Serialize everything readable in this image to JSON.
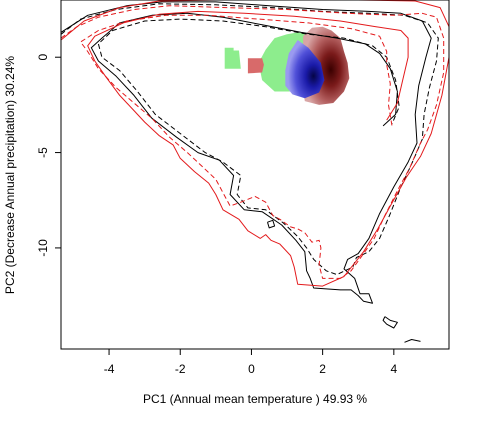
{
  "chart_data": {
    "type": "contour",
    "title": "",
    "xlabel": "PC1 (Annual mean temperature ) 49.93 %",
    "ylabel": "PC2 (Decrease Annual precipitation) 30.24%",
    "xlim": [
      -5.35,
      5.55
    ],
    "ylim": [
      -15.3,
      3.0
    ],
    "x_ticks": [
      -4,
      -2,
      0,
      2,
      4
    ],
    "y_ticks": [
      0,
      -5,
      -10
    ],
    "x_tick_labels": [
      "-4",
      "-2",
      "0",
      "2",
      "4"
    ],
    "y_tick_labels": [
      "0",
      "-5",
      "-10"
    ],
    "grid": false,
    "legend": "none",
    "colors": {
      "black_contour": "#000000",
      "red_contour": "#e31a1c",
      "green_fill": "#88ee88",
      "blue_core": "#1a1aa8",
      "red_core": "#3a0000"
    },
    "series": [
      {
        "style": "black-solid",
        "points": [
          [
            -5.35,
            1.3
          ],
          [
            -4.6,
            2.2
          ],
          [
            -3.5,
            2.7
          ],
          [
            -2.5,
            2.9
          ],
          [
            -1.0,
            2.9
          ],
          [
            0.5,
            2.7
          ],
          [
            2.0,
            2.5
          ],
          [
            3.3,
            2.4
          ],
          [
            4.2,
            2.3
          ],
          [
            4.8,
            1.9
          ],
          [
            5.05,
            1.0
          ],
          [
            4.9,
            0.0
          ],
          [
            4.7,
            -1.5
          ],
          [
            4.6,
            -3.0
          ],
          [
            4.65,
            -4.5
          ],
          [
            4.4,
            -5.5
          ],
          [
            4.0,
            -6.8
          ],
          [
            3.6,
            -8.2
          ],
          [
            3.3,
            -9.5
          ],
          [
            3.0,
            -10.3
          ],
          [
            2.7,
            -10.6
          ],
          [
            2.6,
            -11.1
          ],
          [
            2.9,
            -11.6
          ],
          [
            3.05,
            -12.4
          ],
          [
            3.3,
            -12.4
          ],
          [
            3.4,
            -12.9
          ],
          [
            3.15,
            -12.8
          ],
          [
            3.0,
            -12.5
          ],
          [
            2.8,
            -12.2
          ],
          [
            2.5,
            -12.2
          ],
          [
            1.75,
            -12.1
          ],
          [
            1.65,
            -11.6
          ],
          [
            1.55,
            -11.2
          ],
          [
            1.5,
            -10.2
          ],
          [
            1.25,
            -9.6
          ],
          [
            0.85,
            -8.8
          ],
          [
            0.3,
            -8.1
          ],
          [
            -0.2,
            -8.0
          ],
          [
            -0.6,
            -7.2
          ],
          [
            -0.5,
            -6.2
          ],
          [
            -0.9,
            -5.4
          ],
          [
            -1.5,
            -5.0
          ],
          [
            -2.1,
            -4.2
          ],
          [
            -2.8,
            -3.2
          ],
          [
            -3.3,
            -2.0
          ],
          [
            -3.8,
            -1.0
          ],
          [
            -4.3,
            -0.2
          ],
          [
            -4.5,
            0.5
          ],
          [
            -4.2,
            1.0
          ],
          [
            -3.7,
            1.8
          ],
          [
            -2.8,
            2.2
          ],
          [
            -1.8,
            2.3
          ],
          [
            -0.8,
            2.1
          ],
          [
            0.3,
            1.7
          ],
          [
            1.4,
            1.3
          ],
          [
            2.4,
            1.0
          ],
          [
            3.2,
            0.7
          ],
          [
            3.6,
            0.2
          ],
          [
            3.9,
            -0.6
          ],
          [
            4.1,
            -1.8
          ],
          [
            4.05,
            -3.0
          ],
          [
            3.7,
            -3.6
          ]
        ]
      },
      {
        "style": "black-dashed",
        "points": [
          [
            -5.35,
            1.2
          ],
          [
            -4.8,
            2.0
          ],
          [
            -3.8,
            2.5
          ],
          [
            -2.6,
            2.8
          ],
          [
            -1.0,
            2.75
          ],
          [
            0.6,
            2.6
          ],
          [
            2.0,
            2.4
          ],
          [
            3.3,
            2.3
          ],
          [
            4.3,
            2.2
          ],
          [
            4.95,
            1.8
          ],
          [
            5.25,
            1.0
          ],
          [
            5.2,
            -0.2
          ],
          [
            5.0,
            -1.6
          ],
          [
            4.85,
            -3.0
          ],
          [
            4.8,
            -4.3
          ],
          [
            4.5,
            -5.6
          ],
          [
            4.2,
            -6.8
          ],
          [
            3.9,
            -8.2
          ],
          [
            3.6,
            -9.5
          ],
          [
            3.3,
            -10.2
          ],
          [
            2.95,
            -10.5
          ],
          [
            2.85,
            -11.0
          ],
          [
            2.4,
            -11.4
          ],
          [
            2.1,
            -11.2
          ],
          [
            1.75,
            -10.6
          ],
          [
            1.55,
            -10.0
          ],
          [
            1.3,
            -9.4
          ],
          [
            0.9,
            -8.7
          ],
          [
            0.4,
            -8.0
          ],
          [
            -0.1,
            -7.9
          ],
          [
            -0.4,
            -7.2
          ],
          [
            -0.3,
            -6.2
          ],
          [
            -0.8,
            -5.5
          ],
          [
            -1.3,
            -5.0
          ],
          [
            -2.0,
            -4.0
          ],
          [
            -2.7,
            -3.0
          ],
          [
            -3.2,
            -1.8
          ],
          [
            -3.7,
            -0.7
          ],
          [
            -4.2,
            0.0
          ],
          [
            -4.3,
            0.7
          ],
          [
            -3.9,
            1.4
          ],
          [
            -3.0,
            1.9
          ],
          [
            -2.0,
            2.0
          ],
          [
            -0.8,
            1.9
          ],
          [
            0.4,
            1.6
          ],
          [
            1.6,
            1.2
          ],
          [
            2.6,
            1.0
          ],
          [
            3.4,
            0.6
          ],
          [
            3.8,
            0.0
          ],
          [
            4.05,
            -1.2
          ],
          [
            4.15,
            -2.6
          ],
          [
            3.95,
            -3.5
          ]
        ]
      },
      {
        "style": "red-solid",
        "points": [
          [
            -5.35,
            0.9
          ],
          [
            -4.7,
            1.9
          ],
          [
            -3.7,
            2.6
          ],
          [
            -2.6,
            2.95
          ],
          [
            -1.0,
            3.0
          ],
          [
            1.0,
            3.0
          ],
          [
            3.0,
            3.0
          ],
          [
            4.6,
            2.95
          ],
          [
            5.3,
            2.6
          ],
          [
            5.55,
            1.6
          ],
          [
            5.55,
            0.0
          ],
          [
            5.35,
            -2.0
          ],
          [
            5.05,
            -4.0
          ],
          [
            4.75,
            -5.2
          ],
          [
            4.35,
            -6.3
          ],
          [
            3.9,
            -7.8
          ],
          [
            3.55,
            -9.0
          ],
          [
            3.15,
            -10.2
          ],
          [
            2.6,
            -11.5
          ],
          [
            2.0,
            -12.0
          ],
          [
            1.3,
            -11.9
          ],
          [
            1.2,
            -11.0
          ],
          [
            1.1,
            -10.4
          ],
          [
            0.8,
            -9.8
          ],
          [
            0.55,
            -9.6
          ],
          [
            0.4,
            -9.3
          ],
          [
            0.25,
            -9.5
          ],
          [
            -0.1,
            -9.1
          ],
          [
            -0.35,
            -8.5
          ],
          [
            -0.8,
            -8.0
          ],
          [
            -1.0,
            -7.2
          ],
          [
            -1.2,
            -6.6
          ],
          [
            -1.6,
            -6.0
          ],
          [
            -2.0,
            -5.3
          ],
          [
            -2.2,
            -4.6
          ],
          [
            -2.6,
            -4.1
          ],
          [
            -3.0,
            -3.4
          ],
          [
            -3.3,
            -2.8
          ],
          [
            -3.7,
            -2.0
          ],
          [
            -4.1,
            -1.0
          ],
          [
            -4.4,
            -0.2
          ],
          [
            -4.6,
            0.6
          ],
          [
            -4.4,
            1.1
          ],
          [
            -3.6,
            1.8
          ],
          [
            -2.6,
            2.25
          ],
          [
            -1.5,
            2.4
          ],
          [
            -0.2,
            2.3
          ],
          [
            1.2,
            2.15
          ],
          [
            2.5,
            1.9
          ],
          [
            3.5,
            1.6
          ],
          [
            4.2,
            1.4
          ],
          [
            4.4,
            1.0
          ],
          [
            4.4,
            0.0
          ],
          [
            4.25,
            -1.2
          ],
          [
            4.1,
            -2.4
          ],
          [
            3.8,
            -3.3
          ]
        ]
      },
      {
        "style": "red-dashed",
        "points": [
          [
            -5.35,
            1.0
          ],
          [
            -4.9,
            1.6
          ],
          [
            -4.3,
            2.1
          ],
          [
            -3.3,
            2.5
          ],
          [
            -2.3,
            2.7
          ],
          [
            -0.7,
            2.6
          ],
          [
            1.0,
            2.5
          ],
          [
            2.7,
            2.3
          ],
          [
            4.0,
            2.2
          ],
          [
            4.8,
            2.3
          ],
          [
            5.2,
            2.1
          ],
          [
            5.4,
            1.0
          ],
          [
            5.4,
            -0.8
          ],
          [
            5.2,
            -2.5
          ],
          [
            4.95,
            -3.8
          ],
          [
            4.75,
            -4.5
          ],
          [
            4.45,
            -5.8
          ],
          [
            4.1,
            -7.0
          ],
          [
            3.75,
            -8.3
          ],
          [
            3.45,
            -9.5
          ],
          [
            3.15,
            -10.3
          ],
          [
            2.8,
            -11.2
          ],
          [
            2.5,
            -11.6
          ],
          [
            2.0,
            -11.6
          ],
          [
            1.9,
            -10.9
          ],
          [
            1.95,
            -10.0
          ],
          [
            1.9,
            -9.6
          ],
          [
            1.7,
            -9.7
          ],
          [
            1.5,
            -9.2
          ],
          [
            1.3,
            -9.0
          ],
          [
            1.1,
            -8.9
          ],
          [
            0.8,
            -8.5
          ],
          [
            0.6,
            -8.3
          ],
          [
            0.4,
            -7.6
          ],
          [
            0.1,
            -7.3
          ],
          [
            -0.3,
            -7.6
          ],
          [
            -0.6,
            -7.8
          ],
          [
            -1.0,
            -6.4
          ],
          [
            -1.4,
            -5.7
          ],
          [
            -1.8,
            -5.0
          ],
          [
            -2.3,
            -4.2
          ],
          [
            -2.8,
            -3.2
          ],
          [
            -3.3,
            -2.4
          ],
          [
            -3.8,
            -1.6
          ],
          [
            -4.3,
            -0.6
          ],
          [
            -4.6,
            0.3
          ],
          [
            -4.8,
            0.8
          ],
          [
            -4.3,
            1.4
          ],
          [
            -3.5,
            1.9
          ],
          [
            -2.4,
            2.2
          ],
          [
            -1.2,
            2.2
          ],
          [
            0.2,
            2.0
          ],
          [
            1.6,
            1.8
          ],
          [
            2.8,
            1.5
          ],
          [
            3.6,
            1.1
          ],
          [
            3.8,
            0.3
          ],
          [
            3.8,
            -0.4
          ],
          [
            3.9,
            -1.4
          ],
          [
            3.85,
            -2.5
          ],
          [
            3.95,
            -3.6
          ]
        ]
      },
      {
        "style": "black-solid",
        "points": [
          [
            3.75,
            -13.6
          ],
          [
            3.9,
            -13.8
          ],
          [
            4.1,
            -13.9
          ],
          [
            4.0,
            -14.2
          ],
          [
            3.8,
            -14.0
          ],
          [
            3.7,
            -13.8
          ],
          [
            3.75,
            -13.6
          ]
        ]
      },
      {
        "style": "black-solid",
        "points": [
          [
            4.3,
            -14.95
          ],
          [
            4.5,
            -14.8
          ],
          [
            4.75,
            -14.9
          ]
        ]
      },
      {
        "style": "black-solid",
        "points": [
          [
            0.45,
            -8.65
          ],
          [
            0.6,
            -8.55
          ],
          [
            0.65,
            -8.85
          ],
          [
            0.5,
            -8.95
          ],
          [
            0.45,
            -8.65
          ]
        ]
      }
    ],
    "density_regions": [
      {
        "color": "green",
        "points": [
          [
            -0.75,
            0.5
          ],
          [
            -0.5,
            0.5
          ],
          [
            -0.5,
            0.35
          ],
          [
            -0.35,
            0.35
          ],
          [
            -0.3,
            -0.6
          ],
          [
            -0.75,
            -0.6
          ],
          [
            -0.75,
            0.5
          ]
        ]
      },
      {
        "color": "green",
        "points": [
          [
            0.65,
            1.0
          ],
          [
            1.0,
            1.2
          ],
          [
            1.3,
            1.3
          ],
          [
            1.5,
            1.25
          ],
          [
            1.6,
            0.5
          ],
          [
            1.3,
            -0.3
          ],
          [
            1.0,
            -1.0
          ],
          [
            1.2,
            -1.8
          ],
          [
            0.65,
            -1.8
          ],
          [
            0.3,
            -1.2
          ],
          [
            0.2,
            -0.3
          ],
          [
            0.4,
            0.4
          ],
          [
            0.65,
            1.0
          ]
        ]
      },
      {
        "color": "red-light",
        "points": [
          [
            -0.1,
            -0.05
          ],
          [
            0.3,
            -0.05
          ],
          [
            0.35,
            -0.4
          ],
          [
            0.3,
            -0.8
          ],
          [
            -0.1,
            -0.85
          ],
          [
            -0.1,
            -0.05
          ]
        ]
      },
      {
        "color": "red",
        "points": [
          [
            1.45,
            1.1
          ],
          [
            1.7,
            1.55
          ],
          [
            2.0,
            1.6
          ],
          [
            2.25,
            1.4
          ],
          [
            2.5,
            1.0
          ],
          [
            2.6,
            0.3
          ],
          [
            2.7,
            -0.3
          ],
          [
            2.75,
            -1.1
          ],
          [
            2.6,
            -1.8
          ],
          [
            2.3,
            -2.4
          ],
          [
            1.9,
            -2.5
          ],
          [
            1.5,
            -2.3
          ],
          [
            1.45,
            -1.6
          ],
          [
            1.5,
            -1.0
          ],
          [
            1.45,
            0.0
          ],
          [
            1.45,
            1.1
          ]
        ]
      },
      {
        "color": "blue",
        "points": [
          [
            1.3,
            0.9
          ],
          [
            1.6,
            0.5
          ],
          [
            1.95,
            -0.3
          ],
          [
            2.05,
            -1.2
          ],
          [
            1.9,
            -1.85
          ],
          [
            1.5,
            -2.15
          ],
          [
            1.15,
            -1.95
          ],
          [
            0.95,
            -1.5
          ],
          [
            0.95,
            -0.7
          ],
          [
            1.05,
            0.2
          ],
          [
            1.3,
            0.9
          ]
        ]
      }
    ],
    "density_peak": [
      1.95,
      -0.75
    ]
  }
}
